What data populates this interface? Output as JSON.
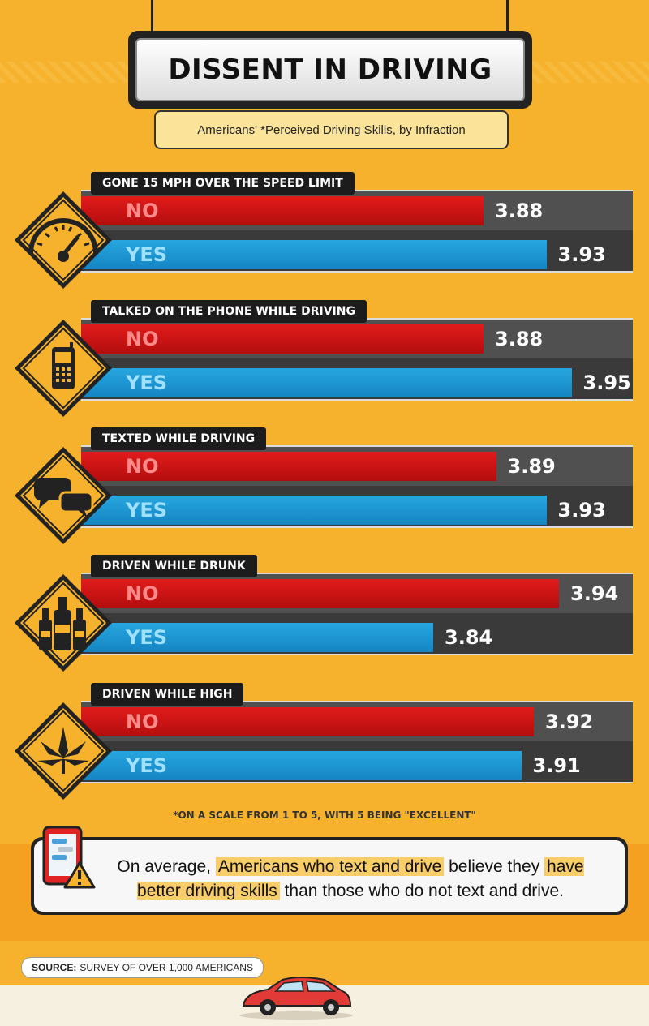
{
  "title": "DISSENT IN DRIVING",
  "subtitle": "Americans' *Perceived Driving Skills, by Infraction",
  "chart_data": {
    "type": "bar",
    "orientation": "horizontal",
    "title": "DISSENT IN DRIVING",
    "subtitle": "Americans' *Perceived Driving Skills, by Infraction",
    "categories": [
      "GONE 15 MPH OVER THE SPEED LIMIT",
      "TALKED ON THE PHONE WHILE DRIVING",
      "TEXTED WHILE DRIVING",
      "DRIVEN WHILE DRUNK",
      "DRIVEN WHILE HIGH"
    ],
    "series": [
      {
        "name": "NO",
        "color": "#d41414",
        "values": [
          3.88,
          3.88,
          3.89,
          3.94,
          3.92
        ]
      },
      {
        "name": "YES",
        "color": "#1e96d4",
        "values": [
          3.93,
          3.95,
          3.93,
          3.84,
          3.91
        ]
      }
    ],
    "icons": [
      "speedometer-icon",
      "phone-icon",
      "speech-bubbles-icon",
      "bottles-icon",
      "cannabis-leaf-icon"
    ],
    "footnote": "*ON A SCALE FROM 1 TO 5, WITH 5 BEING \"EXCELLENT\""
  },
  "callout": {
    "parts": [
      {
        "text": "On average, ",
        "highlight": false
      },
      {
        "text": "Americans who text and drive",
        "highlight": true
      },
      {
        "text": " believe they ",
        "highlight": false
      },
      {
        "text": "have better driving skills",
        "highlight": true
      },
      {
        "text": " than those who do not text and drive.",
        "highlight": false
      }
    ]
  },
  "source": {
    "label": "SOURCE:",
    "text": "SURVEY OF OVER 1,000 AMERICANS"
  }
}
